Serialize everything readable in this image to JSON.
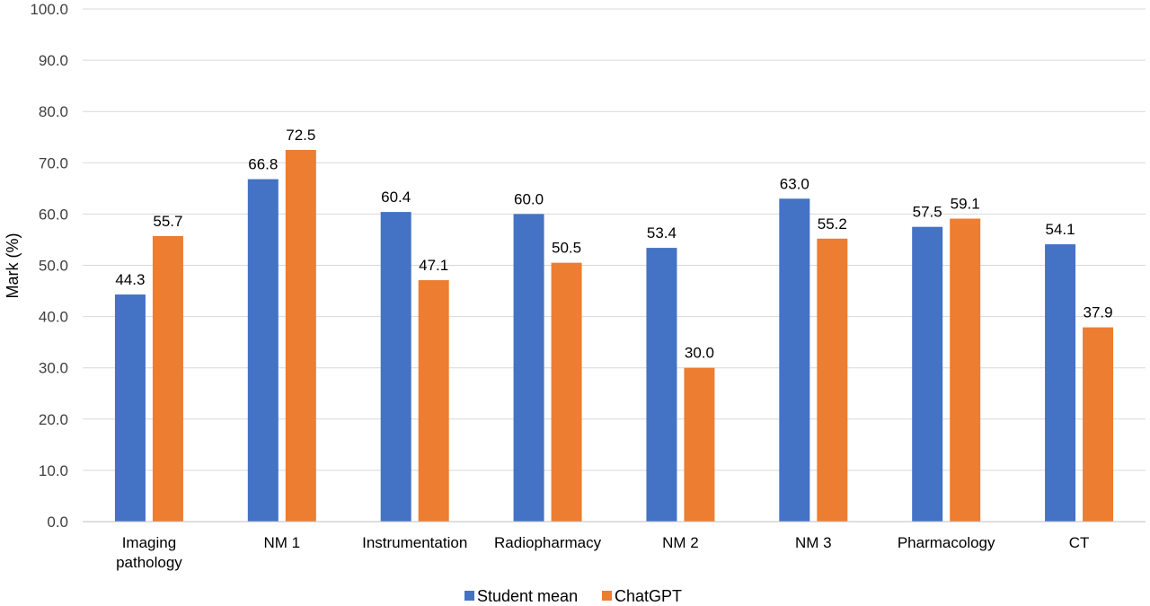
{
  "chart_data": {
    "type": "bar",
    "categories": [
      [
        "Imaging",
        "pathology"
      ],
      [
        "NM 1"
      ],
      [
        "Instrumentation"
      ],
      [
        "Radiopharmacy"
      ],
      [
        "NM 2"
      ],
      [
        "NM 3"
      ],
      [
        "Pharmacology"
      ],
      [
        "CT"
      ]
    ],
    "series": [
      {
        "name": "Student mean",
        "color": "#4472c4",
        "values": [
          44.3,
          66.8,
          60.4,
          60.0,
          53.4,
          63.0,
          57.5,
          54.1
        ],
        "labels": [
          "44.3",
          "66.8",
          "60.4",
          "60.0",
          "53.4",
          "63.0",
          "57.5",
          "54.1"
        ]
      },
      {
        "name": "ChatGPT",
        "color": "#ed7d31",
        "values": [
          55.7,
          72.5,
          47.1,
          50.5,
          30.0,
          55.2,
          59.1,
          37.9
        ],
        "labels": [
          "55.7",
          "72.5",
          "47.1",
          "50.5",
          "30.0",
          "55.2",
          "59.1",
          "37.9"
        ]
      }
    ],
    "ylabel": "Mark (%)",
    "ylim": [
      0,
      100
    ],
    "yticks": [
      "0.0",
      "10.0",
      "20.0",
      "30.0",
      "40.0",
      "50.0",
      "60.0",
      "70.0",
      "80.0",
      "90.0",
      "100.0"
    ],
    "grid": true,
    "legend": "bottom"
  }
}
